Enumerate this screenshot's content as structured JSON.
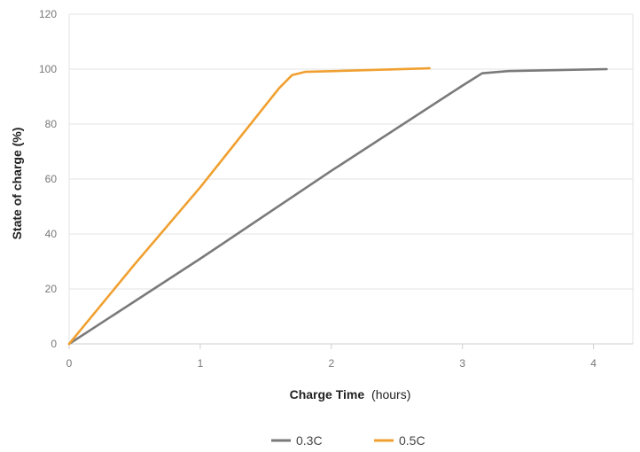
{
  "chart_data": {
    "type": "line",
    "xlabel_bold": "Charge Time",
    "xlabel_rest": "(hours)",
    "ylabel": "State of charge (%)",
    "xlim": [
      0,
      4.3
    ],
    "ylim": [
      0,
      120
    ],
    "x_ticks": [
      "0",
      "1",
      "2",
      "3",
      "4"
    ],
    "y_ticks": [
      "0",
      "20",
      "40",
      "60",
      "80",
      "100",
      "120"
    ],
    "grid": true,
    "legend_position": "bottom-center",
    "series": [
      {
        "name": "0.3C",
        "color": "#7a7a7a",
        "points": [
          [
            0.0,
            0
          ],
          [
            1.0,
            31
          ],
          [
            2.0,
            63
          ],
          [
            3.0,
            94
          ],
          [
            3.15,
            98.5
          ],
          [
            3.35,
            99.3
          ],
          [
            4.1,
            100
          ]
        ]
      },
      {
        "name": "0.5C",
        "color": "#f0a030",
        "points": [
          [
            0.0,
            0
          ],
          [
            0.5,
            29
          ],
          [
            1.0,
            57
          ],
          [
            1.6,
            93
          ],
          [
            1.7,
            97.8
          ],
          [
            1.8,
            99
          ],
          [
            2.75,
            100.3
          ]
        ]
      }
    ]
  }
}
